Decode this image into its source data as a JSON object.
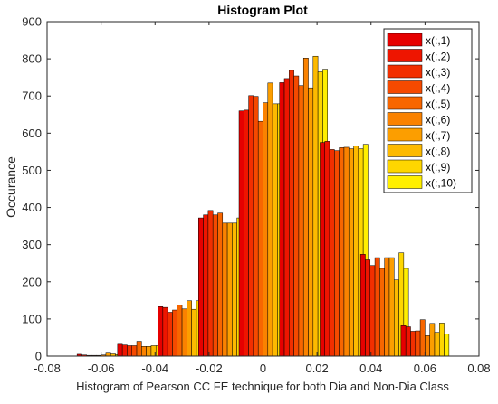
{
  "chart_data": {
    "type": "bar",
    "title": "Histogram Plot",
    "xlabel": "Histogram of Pearson CC FE technique for both Dia and Non-Dia Class",
    "ylabel": "Occurance",
    "xlim": [
      -0.08,
      0.08
    ],
    "ylim": [
      0,
      900
    ],
    "xticks": [
      "-0.08",
      "-0.06",
      "-0.04",
      "-0.02",
      "0",
      "0.02",
      "0.04",
      "0.06",
      "0.08"
    ],
    "yticks": [
      "0",
      "100",
      "200",
      "300",
      "400",
      "500",
      "600",
      "700",
      "800",
      "900"
    ],
    "grid": false,
    "legend_position": "top-right",
    "bin_centers": [
      -0.06,
      -0.045,
      -0.03,
      -0.015,
      0,
      0.015,
      0.03,
      0.045,
      0.06
    ],
    "series": [
      {
        "name": "x(:,1)",
        "color": "#e60000",
        "values": [
          5,
          32,
          133,
          372,
          660,
          736,
          575,
          274,
          82
        ]
      },
      {
        "name": "x(:,2)",
        "color": "#ee1500",
        "values": [
          3,
          30,
          131,
          380,
          662,
          747,
          578,
          259,
          79
        ]
      },
      {
        "name": "x(:,3)",
        "color": "#f22f00",
        "values": [
          2,
          28,
          118,
          392,
          701,
          769,
          556,
          244,
          67
        ]
      },
      {
        "name": "x(:,4)",
        "color": "#f54a00",
        "values": [
          2,
          28,
          124,
          380,
          699,
          754,
          553,
          265,
          68
        ]
      },
      {
        "name": "x(:,5)",
        "color": "#f86600",
        "values": [
          2,
          40,
          137,
          385,
          632,
          728,
          561,
          236,
          98
        ]
      },
      {
        "name": "x(:,6)",
        "color": "#fa8200",
        "values": [
          3,
          26,
          127,
          358,
          682,
          802,
          562,
          265,
          55
        ]
      },
      {
        "name": "x(:,7)",
        "color": "#fc9e00",
        "values": [
          8,
          26,
          149,
          358,
          735,
          722,
          558,
          265,
          88
        ]
      },
      {
        "name": "x(:,8)",
        "color": "#fdba00",
        "values": [
          6,
          28,
          126,
          358,
          679,
          807,
          565,
          205,
          64
        ]
      },
      {
        "name": "x(:,9)",
        "color": "#fed600",
        "values": [
          4,
          28,
          149,
          372,
          679,
          765,
          558,
          278,
          89
        ]
      },
      {
        "name": "x(:,10)",
        "color": "#ffef00",
        "values": [
          8,
          29,
          132,
          366,
          692,
          772,
          570,
          236,
          60
        ]
      }
    ]
  }
}
